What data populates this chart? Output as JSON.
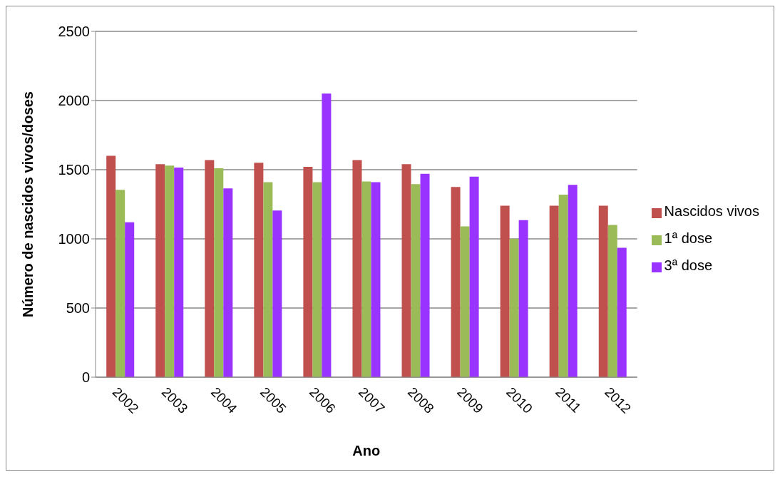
{
  "chart_data": {
    "type": "bar",
    "xlabel": "Ano",
    "ylabel": "Número de  nascidos vivos/doses",
    "categories": [
      "2002",
      "2003",
      "2004",
      "2005",
      "2006",
      "2007",
      "2008",
      "2009",
      "2010",
      "2011",
      "2012"
    ],
    "series": [
      {
        "name": "Nascidos vivos",
        "color": "#c0504d",
        "values": [
          1600,
          1540,
          1570,
          1550,
          1520,
          1570,
          1540,
          1375,
          1240,
          1240,
          1240
        ]
      },
      {
        "name": "1ª dose",
        "color": "#9bbb59",
        "values": [
          1355,
          1530,
          1510,
          1410,
          1410,
          1415,
          1395,
          1090,
          1000,
          1320,
          1100
        ]
      },
      {
        "name": "3ª dose",
        "color": "#9933ff",
        "values": [
          1120,
          1515,
          1365,
          1205,
          2050,
          1410,
          1470,
          1450,
          1135,
          1390,
          935
        ]
      }
    ],
    "ylim": [
      0,
      2500
    ],
    "yticks": [
      0,
      500,
      1000,
      1500,
      2000,
      2500
    ],
    "grid": "y",
    "legend": "right"
  }
}
